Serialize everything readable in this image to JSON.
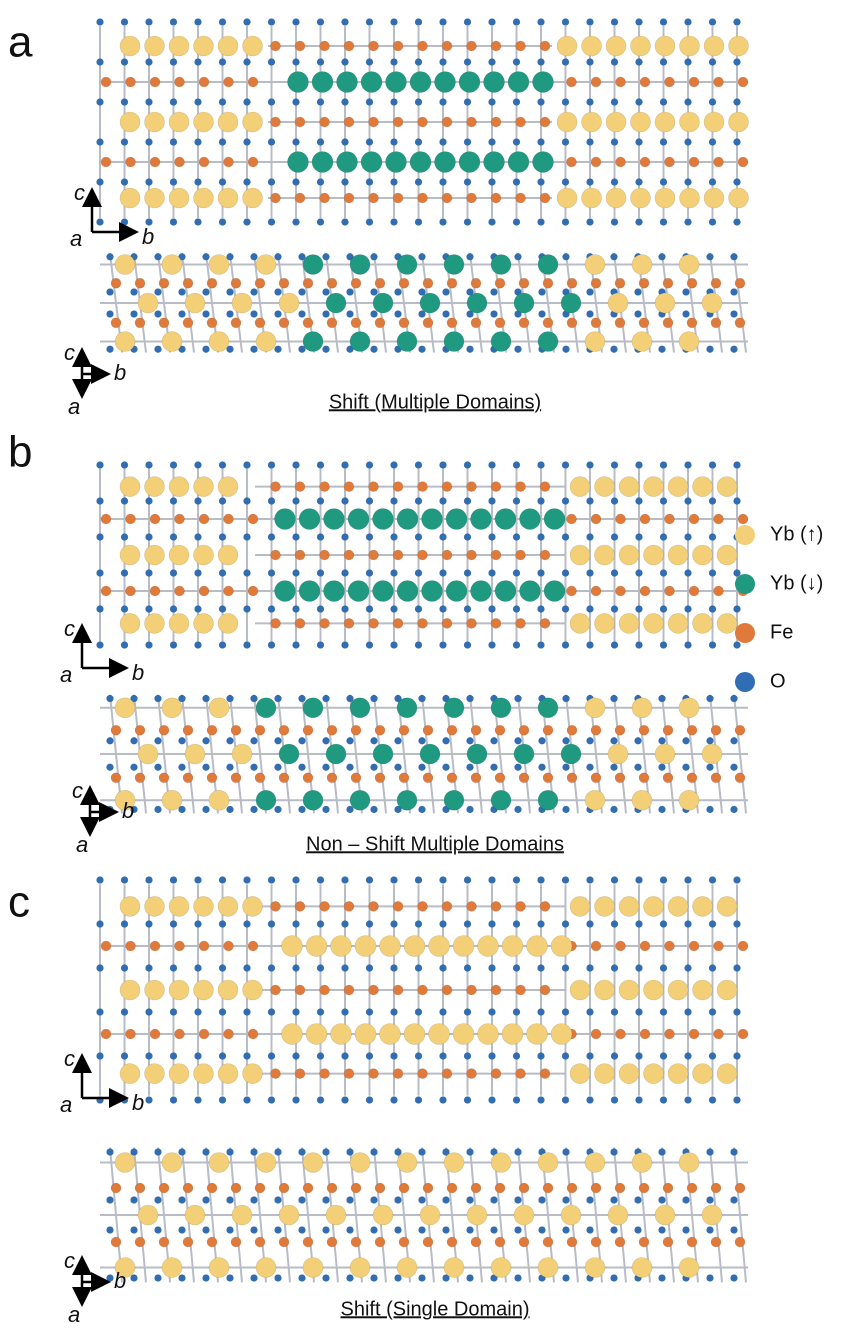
{
  "panels": [
    {
      "label": "a",
      "caption": "Shift (Multiple Domains)",
      "views": [
        {
          "vertical": "c",
          "depth": "a",
          "horizontal": "b"
        },
        {
          "vertical": "c",
          "horizontal": "b",
          "depth": "a"
        }
      ]
    },
    {
      "label": "b",
      "caption": "Non – Shift Multiple Domains",
      "views": [
        {
          "vertical": "c",
          "depth": "a",
          "horizontal": "b"
        },
        {
          "vertical": "c",
          "horizontal": "b",
          "depth": "a"
        }
      ]
    },
    {
      "label": "c",
      "caption": "Shift (Single Domain)",
      "views": [
        {
          "vertical": "c",
          "depth": "a",
          "horizontal": "b"
        },
        {
          "vertical": "c",
          "horizontal": "b",
          "depth": "a"
        }
      ]
    }
  ],
  "legend": [
    {
      "label": "Yb (↑)",
      "color": "#f3cf78"
    },
    {
      "label": "Yb (↓)",
      "color": "#1f9a80"
    },
    {
      "label": "Fe",
      "color": "#e07a3a"
    },
    {
      "label": "O",
      "color": "#2f6db5"
    }
  ]
}
